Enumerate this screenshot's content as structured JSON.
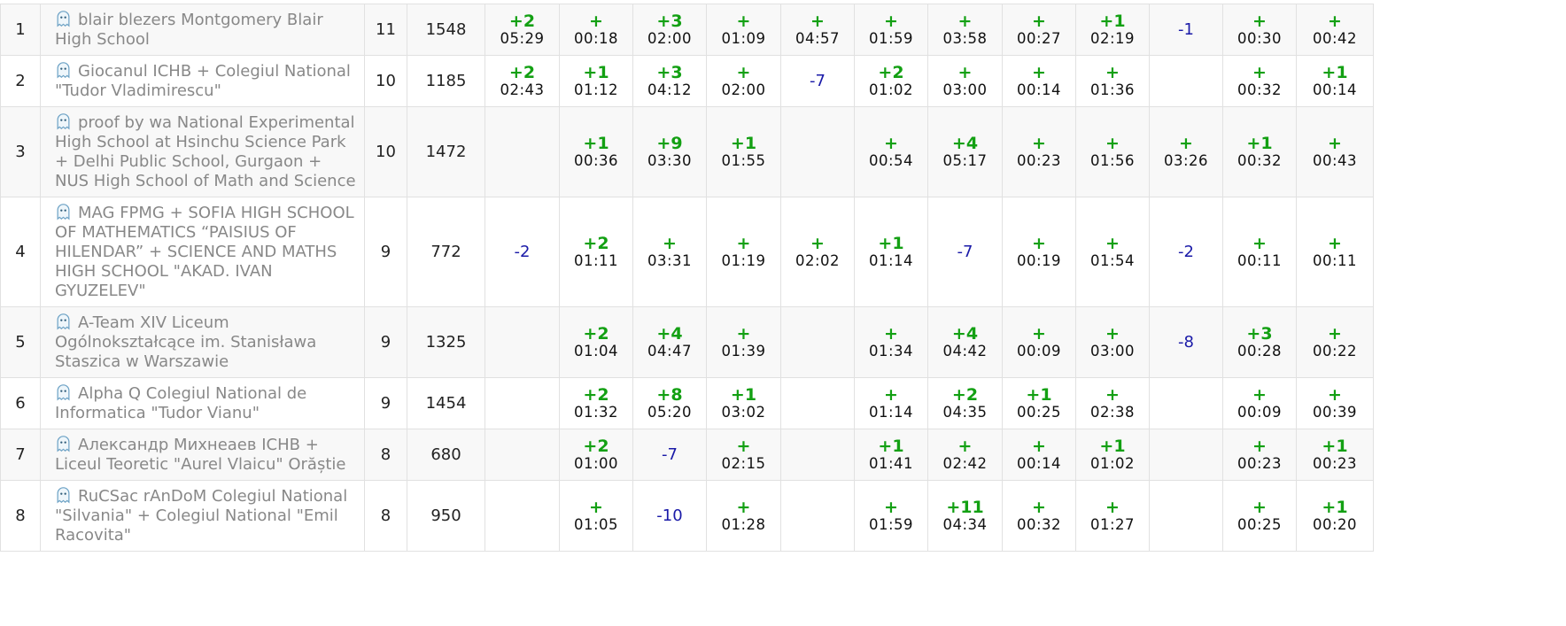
{
  "colors": {
    "accepted": "#13a013",
    "rejected": "#1a1aa8",
    "party_text": "#888888",
    "row_alt": "#f8f8f8",
    "border": "#e1e1e1"
  },
  "party_icon": "ghost-icon",
  "rows": [
    {
      "rank": "1",
      "party": "blair blezers Montgomery Blair High School",
      "score": "11",
      "penalty": "1548",
      "problems": [
        [
          "+2",
          "05:29"
        ],
        [
          "+",
          "00:18"
        ],
        [
          "+3",
          "02:00"
        ],
        [
          "+",
          "01:09"
        ],
        [
          "+",
          "04:57"
        ],
        [
          "+",
          "01:59"
        ],
        [
          "+",
          "03:58"
        ],
        [
          "+",
          "00:27"
        ],
        [
          "+1",
          "02:19"
        ],
        [
          "-1",
          ""
        ],
        [
          "+",
          "00:30"
        ],
        [
          "+",
          "00:42"
        ]
      ]
    },
    {
      "rank": "2",
      "party": "Giocanul ICHB + Colegiul National \"Tudor Vladimirescu\"",
      "score": "10",
      "penalty": "1185",
      "problems": [
        [
          "+2",
          "02:43"
        ],
        [
          "+1",
          "01:12"
        ],
        [
          "+3",
          "04:12"
        ],
        [
          "+",
          "02:00"
        ],
        [
          "-7",
          ""
        ],
        [
          "+2",
          "01:02"
        ],
        [
          "+",
          "03:00"
        ],
        [
          "+",
          "00:14"
        ],
        [
          "+",
          "01:36"
        ],
        [
          "",
          ""
        ],
        [
          "+",
          "00:32"
        ],
        [
          "+1",
          "00:14"
        ]
      ]
    },
    {
      "rank": "3",
      "party": "proof by wa National Experimental High School at Hsinchu Science Park + Delhi Public School, Gurgaon + NUS High School of Math and Science",
      "score": "10",
      "penalty": "1472",
      "problems": [
        [
          "",
          ""
        ],
        [
          "+1",
          "00:36"
        ],
        [
          "+9",
          "03:30"
        ],
        [
          "+1",
          "01:55"
        ],
        [
          "",
          ""
        ],
        [
          "+",
          "00:54"
        ],
        [
          "+4",
          "05:17"
        ],
        [
          "+",
          "00:23"
        ],
        [
          "+",
          "01:56"
        ],
        [
          "+",
          "03:26"
        ],
        [
          "+1",
          "00:32"
        ],
        [
          "+",
          "00:43"
        ]
      ]
    },
    {
      "rank": "4",
      "party": "MAG FPMG + SOFIA HIGH SCHOOL OF MATHEMATICS “PAISIUS OF HILENDAR” + SCIENCE AND MATHS HIGH SCHOOL \"AKAD. IVAN GYUZELEV\"",
      "score": "9",
      "penalty": "772",
      "problems": [
        [
          "-2",
          ""
        ],
        [
          "+2",
          "01:11"
        ],
        [
          "+",
          "03:31"
        ],
        [
          "+",
          "01:19"
        ],
        [
          "+",
          "02:02"
        ],
        [
          "+1",
          "01:14"
        ],
        [
          "-7",
          ""
        ],
        [
          "+",
          "00:19"
        ],
        [
          "+",
          "01:54"
        ],
        [
          "-2",
          ""
        ],
        [
          "+",
          "00:11"
        ],
        [
          "+",
          "00:11"
        ]
      ]
    },
    {
      "rank": "5",
      "party": "A-Team XIV Liceum Ogólnokształcące im. Stanisława Staszica w Warszawie",
      "score": "9",
      "penalty": "1325",
      "problems": [
        [
          "",
          ""
        ],
        [
          "+2",
          "01:04"
        ],
        [
          "+4",
          "04:47"
        ],
        [
          "+",
          "01:39"
        ],
        [
          "",
          ""
        ],
        [
          "+",
          "01:34"
        ],
        [
          "+4",
          "04:42"
        ],
        [
          "+",
          "00:09"
        ],
        [
          "+",
          "03:00"
        ],
        [
          "-8",
          ""
        ],
        [
          "+3",
          "00:28"
        ],
        [
          "+",
          "00:22"
        ]
      ]
    },
    {
      "rank": "6",
      "party": "Alpha Q Colegiul National de Informatica \"Tudor Vianu\"",
      "score": "9",
      "penalty": "1454",
      "problems": [
        [
          "",
          ""
        ],
        [
          "+2",
          "01:32"
        ],
        [
          "+8",
          "05:20"
        ],
        [
          "+1",
          "03:02"
        ],
        [
          "",
          ""
        ],
        [
          "+",
          "01:14"
        ],
        [
          "+2",
          "04:35"
        ],
        [
          "+1",
          "00:25"
        ],
        [
          "+",
          "02:38"
        ],
        [
          "",
          ""
        ],
        [
          "+",
          "00:09"
        ],
        [
          "+",
          "00:39"
        ]
      ]
    },
    {
      "rank": "7",
      "party": "Александр Михнеаев ICHB + Liceul Teoretic \"Aurel Vlaicu\" Orăștie",
      "score": "8",
      "penalty": "680",
      "problems": [
        [
          "",
          ""
        ],
        [
          "+2",
          "01:00"
        ],
        [
          "-7",
          ""
        ],
        [
          "+",
          "02:15"
        ],
        [
          "",
          ""
        ],
        [
          "+1",
          "01:41"
        ],
        [
          "+",
          "02:42"
        ],
        [
          "+",
          "00:14"
        ],
        [
          "+1",
          "01:02"
        ],
        [
          "",
          ""
        ],
        [
          "+",
          "00:23"
        ],
        [
          "+1",
          "00:23"
        ]
      ]
    },
    {
      "rank": "8",
      "party": "RuCSac rAnDoM Colegiul National \"Silvania\" + Colegiul National \"Emil Racovita\"",
      "score": "8",
      "penalty": "950",
      "problems": [
        [
          "",
          ""
        ],
        [
          "+",
          "01:05"
        ],
        [
          "-10",
          ""
        ],
        [
          "+",
          "01:28"
        ],
        [
          "",
          ""
        ],
        [
          "+",
          "01:59"
        ],
        [
          "+11",
          "04:34"
        ],
        [
          "+",
          "00:32"
        ],
        [
          "+",
          "01:27"
        ],
        [
          "",
          ""
        ],
        [
          "+",
          "00:25"
        ],
        [
          "+1",
          "00:20"
        ]
      ]
    }
  ]
}
